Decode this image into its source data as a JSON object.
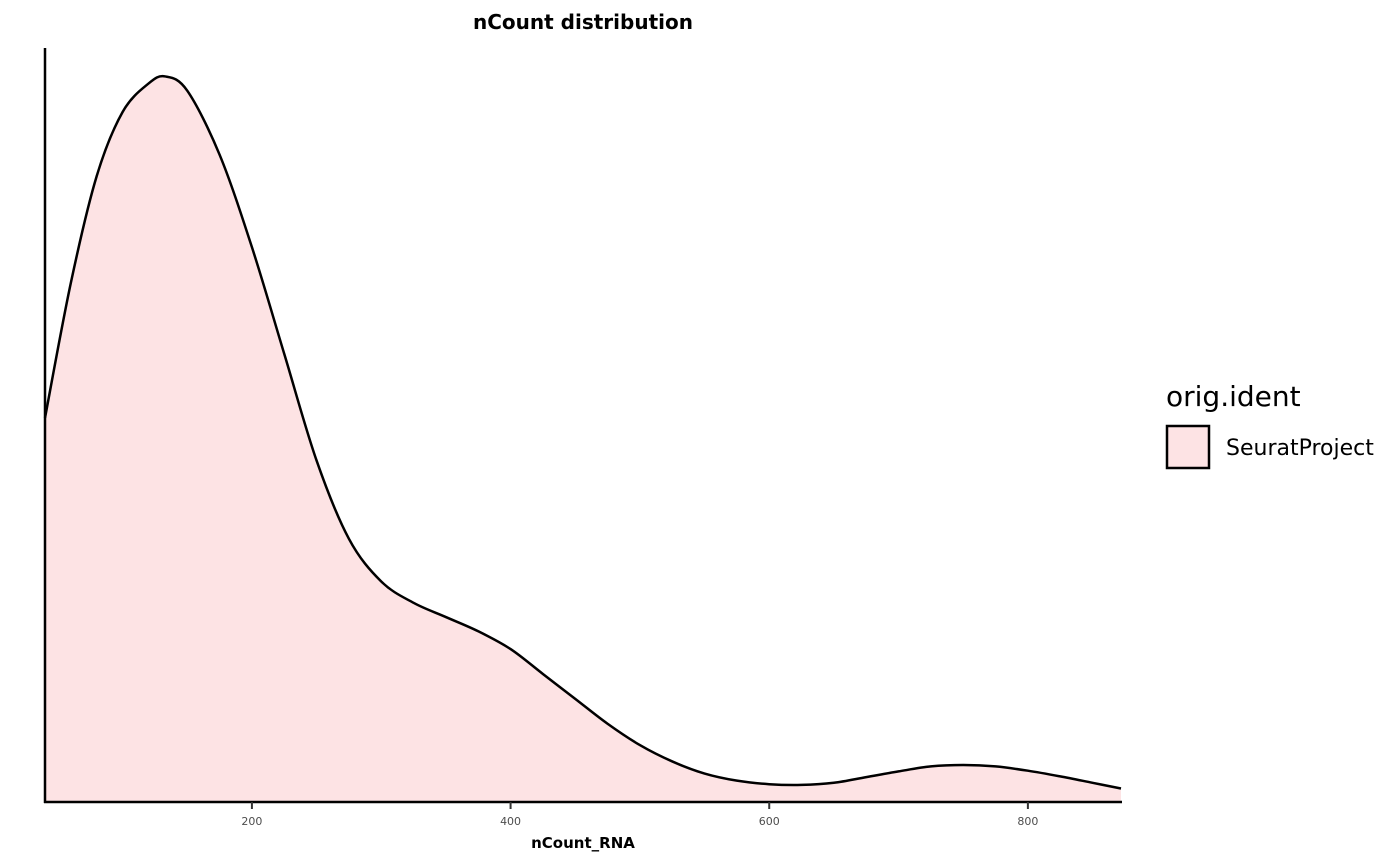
{
  "chart_data": {
    "type": "area",
    "title": "nCount distribution",
    "xlabel": "nCount_RNA",
    "ylabel": "",
    "xlim": [
      40,
      872
    ],
    "x_ticks": [
      200,
      400,
      600,
      800
    ],
    "x_tick_labels": [
      "200",
      "400",
      "600",
      "800"
    ],
    "ylim": [
      0,
      1.06
    ],
    "y_ticks_shown": false,
    "grid": false,
    "legend": {
      "title": "orig.ident",
      "position": "right",
      "entries": [
        "SeuratProject"
      ]
    },
    "series": [
      {
        "name": "SeuratProject",
        "fill": "#fde3e4",
        "stroke": "#000000",
        "x": [
          40,
          60,
          80,
          100,
          120,
          133,
          150,
          175,
          200,
          225,
          250,
          275,
          300,
          325,
          350,
          375,
          400,
          425,
          450,
          475,
          500,
          525,
          550,
          575,
          600,
          625,
          650,
          675,
          700,
          725,
          750,
          775,
          800,
          825,
          850,
          872
        ],
        "y": [
          0.54,
          0.73,
          0.88,
          0.97,
          1.01,
          1.02,
          1.0,
          0.91,
          0.78,
          0.63,
          0.48,
          0.37,
          0.31,
          0.28,
          0.26,
          0.24,
          0.215,
          0.18,
          0.145,
          0.11,
          0.08,
          0.057,
          0.04,
          0.03,
          0.025,
          0.024,
          0.027,
          0.035,
          0.043,
          0.05,
          0.052,
          0.05,
          0.044,
          0.036,
          0.027,
          0.019
        ]
      }
    ]
  }
}
